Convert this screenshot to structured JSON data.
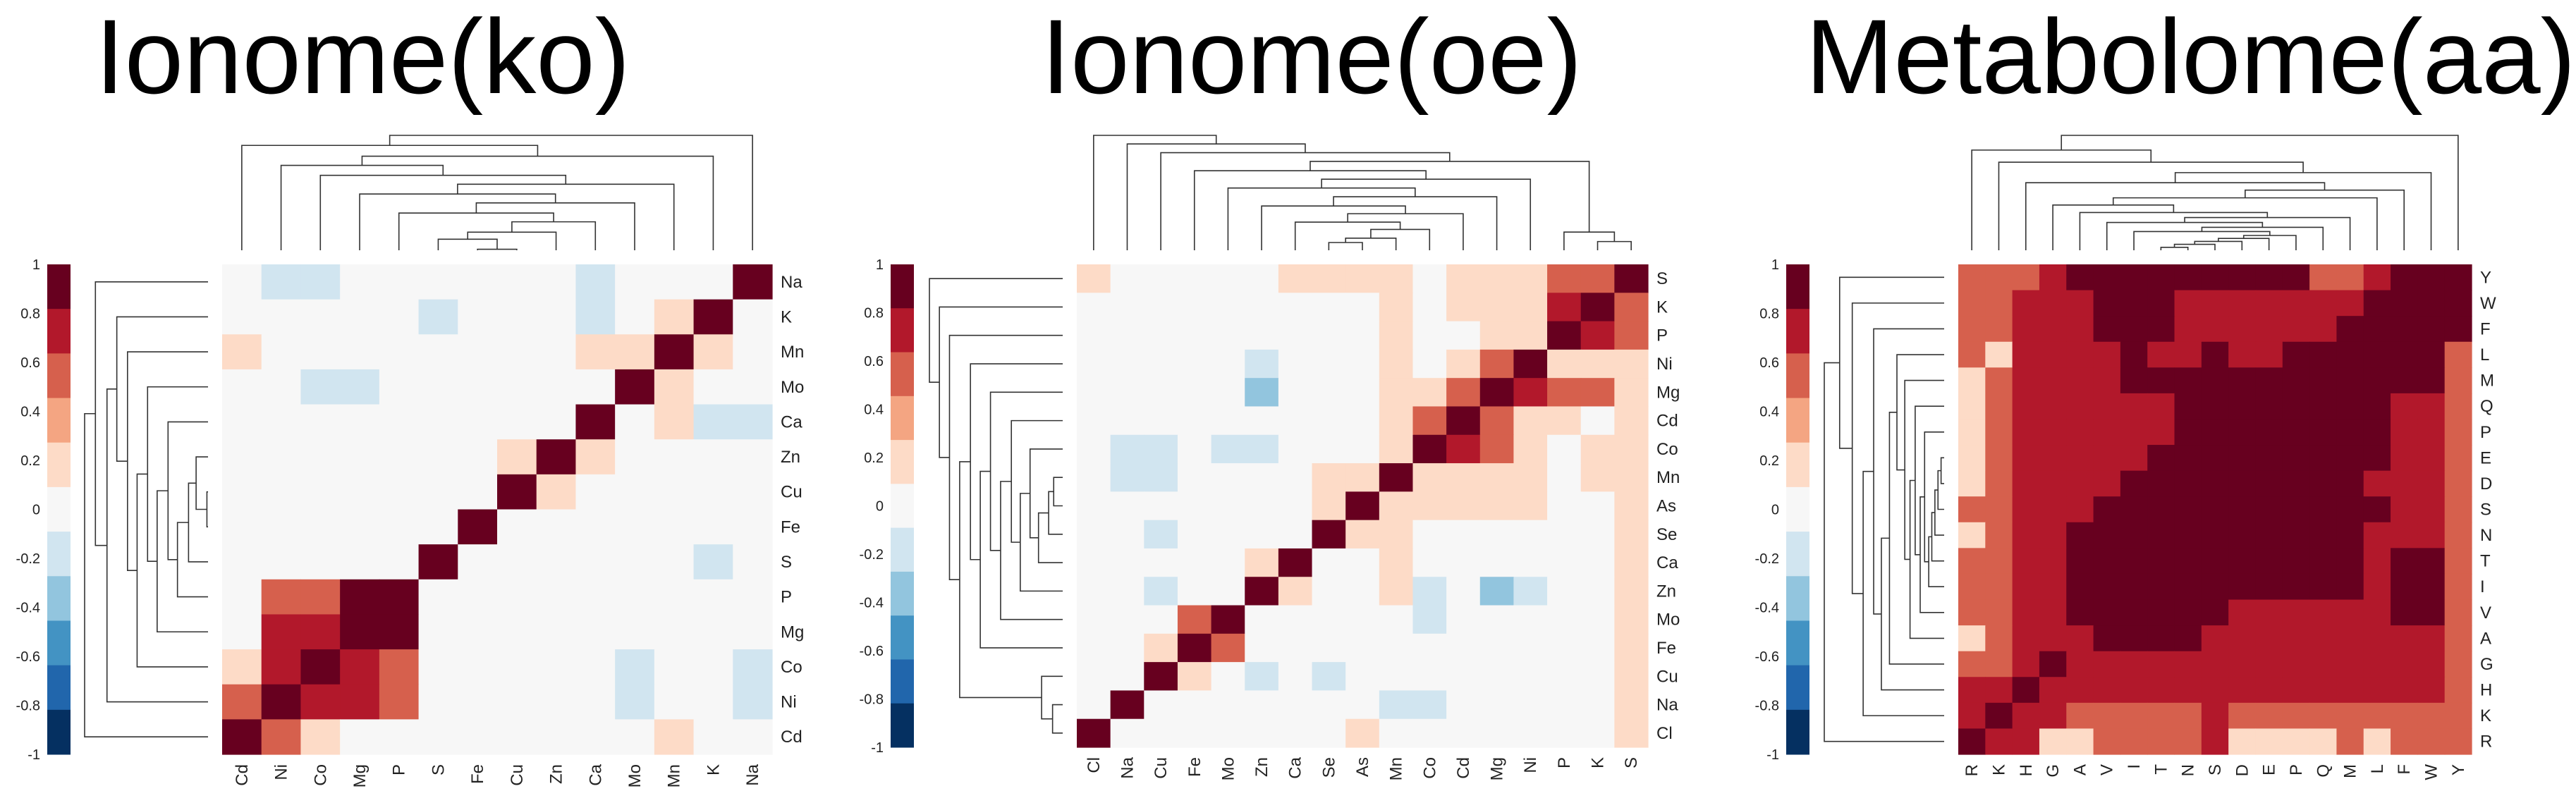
{
  "colorbar": {
    "ticks": [
      "1",
      "0.8",
      "0.6",
      "0.4",
      "0.2",
      "0",
      "-0.2",
      "-0.4",
      "-0.6",
      "-0.8",
      "-1"
    ],
    "colors": [
      "#67001f",
      "#b2182b",
      "#d6604d",
      "#f4a582",
      "#fddbc7",
      "#f7f7f7",
      "#d1e5f0",
      "#92c5de",
      "#4393c3",
      "#2166ac",
      "#053061"
    ]
  },
  "chart_data": [
    {
      "type": "heatmap",
      "title": "Ionome(ko)",
      "xlabel": "",
      "ylabel": "",
      "value_range": [
        -1,
        1
      ],
      "x_labels": [
        "Cd",
        "Ni",
        "Co",
        "Mg",
        "P",
        "S",
        "Fe",
        "Cu",
        "Zn",
        "Ca",
        "Mo",
        "Mn",
        "K",
        "Na"
      ],
      "y_labels": [
        "Na",
        "K",
        "Mn",
        "Mo",
        "Ca",
        "Zn",
        "Cu",
        "Fe",
        "S",
        "P",
        "Mg",
        "Co",
        "Ni",
        "Cd"
      ],
      "values": [
        [
          0,
          -0.1,
          -0.1,
          0,
          0,
          0,
          0,
          0,
          0,
          -0.1,
          0,
          0,
          0,
          1
        ],
        [
          0,
          0,
          0,
          0.1,
          0.1,
          -0.1,
          0,
          0,
          0,
          -0.1,
          0,
          0.3,
          1,
          0
        ],
        [
          0.3,
          0,
          0,
          0,
          0.1,
          0,
          0,
          0,
          0.1,
          0.3,
          0.3,
          1,
          0.3,
          0
        ],
        [
          0.1,
          0,
          -0.1,
          -0.1,
          0,
          0,
          0,
          0,
          0.1,
          0,
          1,
          0.3,
          0.1,
          0
        ],
        [
          0.1,
          0,
          0,
          0,
          0,
          0,
          0,
          0.1,
          0.1,
          1,
          0,
          0.3,
          -0.1,
          -0.1
        ],
        [
          0,
          0,
          0,
          0.1,
          0.1,
          0.1,
          0.1,
          0.3,
          1,
          0.3,
          0,
          0,
          0,
          0
        ],
        [
          0,
          0,
          0,
          0,
          0.1,
          0,
          0.1,
          1,
          0.3,
          0,
          0,
          0,
          0,
          0
        ],
        [
          0,
          0.1,
          0,
          0,
          0,
          0.1,
          1,
          0.1,
          0.1,
          0.1,
          0.1,
          0.1,
          0,
          0
        ],
        [
          0,
          0.1,
          0.1,
          0.1,
          0.1,
          1,
          0.1,
          0,
          0.1,
          0.1,
          0.1,
          0.1,
          -0.1,
          0
        ],
        [
          0.1,
          0.6,
          0.6,
          1,
          1,
          0.1,
          0,
          0.1,
          0.1,
          0.1,
          0,
          0.1,
          0,
          0
        ],
        [
          0.1,
          0.8,
          0.8,
          1,
          1,
          0.1,
          0,
          0,
          0.1,
          0,
          0,
          0.1,
          0.1,
          0
        ],
        [
          0.3,
          0.8,
          1,
          0.8,
          0.6,
          0.1,
          0,
          0,
          0.1,
          0,
          -0.1,
          0.1,
          0,
          -0.1
        ],
        [
          0.6,
          1,
          0.8,
          0.8,
          0.6,
          0.1,
          0.1,
          0,
          0.1,
          0,
          -0.1,
          0,
          0,
          -0.1
        ],
        [
          1,
          0.6,
          0.3,
          0.1,
          0.1,
          0,
          0,
          0,
          0,
          0.1,
          0.1,
          0.3,
          0,
          0
        ]
      ]
    },
    {
      "type": "heatmap",
      "title": "Ionome(oe)",
      "xlabel": "",
      "ylabel": "",
      "value_range": [
        -1,
        1
      ],
      "x_labels": [
        "Cl",
        "Na",
        "Cu",
        "Fe",
        "Mo",
        "Zn",
        "Ca",
        "Se",
        "As",
        "Mn",
        "Co",
        "Cd",
        "Mg",
        "Ni",
        "P",
        "K",
        "S"
      ],
      "y_labels": [
        "S",
        "K",
        "P",
        "Ni",
        "Mg",
        "Cd",
        "Co",
        "Mn",
        "As",
        "Se",
        "Ca",
        "Zn",
        "Mo",
        "Fe",
        "Cu",
        "Na",
        "Cl"
      ],
      "values": [
        [
          0.3,
          0.1,
          0.1,
          0.1,
          0,
          0.1,
          0.3,
          0.3,
          0.3,
          0.3,
          0.1,
          0.3,
          0.3,
          0.3,
          0.6,
          0.6,
          1
        ],
        [
          0.1,
          0.1,
          0,
          0.1,
          0,
          0.1,
          0.1,
          0.1,
          0.1,
          0.3,
          0.1,
          0.3,
          0.3,
          0.3,
          0.8,
          1,
          0.6
        ],
        [
          0.1,
          0.1,
          0.1,
          0.1,
          0,
          0.1,
          0.1,
          0.1,
          0.1,
          0.3,
          0.1,
          0.1,
          0.3,
          0.3,
          1,
          0.8,
          0.6
        ],
        [
          0.1,
          0.1,
          0.1,
          0.1,
          0,
          -0.1,
          0.1,
          0.1,
          0.1,
          0.3,
          0.1,
          0.3,
          0.6,
          1,
          0.3,
          0.3,
          0.3
        ],
        [
          0.1,
          0.1,
          0,
          0,
          0,
          -0.4,
          0.1,
          0.1,
          0.1,
          0.3,
          0.3,
          0.6,
          1,
          0.8,
          0.6,
          0.6,
          0.3
        ],
        [
          0.1,
          0.1,
          0.1,
          0.1,
          0,
          0.1,
          0.1,
          0.1,
          0.1,
          0.3,
          0.6,
          1,
          0.6,
          0.3,
          0.3,
          0.1,
          0.3
        ],
        [
          0,
          -0.1,
          -0.1,
          0,
          -0.1,
          -0.1,
          0.1,
          0.1,
          0.1,
          0.3,
          1,
          0.8,
          0.6,
          0.3,
          0.1,
          0.3,
          0.3
        ],
        [
          0,
          -0.1,
          -0.1,
          0,
          0,
          0.1,
          0.1,
          0.3,
          0.3,
          1,
          0.3,
          0.3,
          0.3,
          0.3,
          0.1,
          0.3,
          0.3
        ],
        [
          0,
          0,
          0.1,
          0.1,
          0,
          0.1,
          0.1,
          0.3,
          1,
          0.3,
          0.3,
          0.3,
          0.3,
          0.3,
          0.1,
          0.1,
          0.3
        ],
        [
          0,
          0.1,
          -0.1,
          0,
          0,
          0.1,
          0.1,
          1,
          0.3,
          0.3,
          0.1,
          0.1,
          0.1,
          0.1,
          0.1,
          0.1,
          0.3
        ],
        [
          0.1,
          0.1,
          0,
          0.1,
          0.1,
          0.3,
          1,
          0.1,
          0.1,
          0.3,
          0.1,
          0.1,
          0.1,
          0.1,
          0.1,
          0.1,
          0.3
        ],
        [
          0,
          0.1,
          -0.1,
          0.1,
          0.1,
          1,
          0.3,
          0.1,
          0.1,
          0.3,
          -0.1,
          0,
          -0.4,
          -0.1,
          0.1,
          0,
          0.3
        ],
        [
          0.1,
          0.1,
          0.1,
          0.6,
          1,
          0.1,
          0.1,
          0.1,
          0,
          0.1,
          -0.1,
          0.1,
          0.1,
          0.1,
          0,
          0.1,
          0.3
        ],
        [
          0.1,
          0.1,
          0.3,
          1,
          0.6,
          0.1,
          0.1,
          0,
          0.1,
          0.1,
          0.1,
          0.1,
          0.1,
          0.1,
          0.1,
          0.1,
          0.3
        ],
        [
          0.1,
          0.1,
          1,
          0.3,
          0.1,
          -0.1,
          0.1,
          -0.1,
          0.1,
          0,
          0.1,
          0.1,
          0.1,
          0.1,
          0.1,
          0,
          0.3
        ],
        [
          0.1,
          1,
          0.1,
          0.1,
          0.1,
          0,
          0.1,
          0,
          0.1,
          -0.1,
          -0.1,
          0.1,
          0,
          0,
          0.1,
          0.1,
          0.3
        ],
        [
          1,
          0.1,
          0.1,
          0.1,
          0,
          0.1,
          0.1,
          0,
          0.3,
          0.1,
          0,
          0.1,
          0.1,
          0.1,
          0.1,
          0.1,
          0.3
        ]
      ]
    },
    {
      "type": "heatmap",
      "title": "Metabolome(aa)",
      "xlabel": "",
      "ylabel": "",
      "value_range": [
        -1,
        1
      ],
      "x_labels": [
        "R",
        "K",
        "H",
        "G",
        "A",
        "V",
        "I",
        "T",
        "N",
        "S",
        "D",
        "E",
        "P",
        "Q",
        "M",
        "L",
        "F",
        "W",
        "Y"
      ],
      "y_labels": [
        "Y",
        "W",
        "F",
        "L",
        "M",
        "Q",
        "P",
        "E",
        "D",
        "S",
        "N",
        "T",
        "I",
        "V",
        "A",
        "G",
        "H",
        "K",
        "R"
      ],
      "values": [
        [
          0.6,
          0.6,
          0.6,
          0.8,
          1,
          1,
          1,
          1,
          1,
          1,
          1,
          1,
          1,
          0.6,
          0.6,
          0.8,
          1,
          1,
          1
        ],
        [
          0.6,
          0.6,
          0.8,
          0.8,
          0.8,
          1,
          1,
          1,
          0.8,
          0.8,
          0.8,
          0.8,
          0.8,
          0.8,
          0.8,
          1,
          1,
          1,
          1
        ],
        [
          0.6,
          0.6,
          0.8,
          0.8,
          0.8,
          1,
          1,
          1,
          0.8,
          0.8,
          0.8,
          0.8,
          0.8,
          0.8,
          1,
          1,
          1,
          1,
          1
        ],
        [
          0.6,
          0.3,
          0.8,
          0.8,
          0.8,
          0.8,
          1,
          0.8,
          0.8,
          1,
          0.8,
          0.8,
          1,
          1,
          1,
          1,
          1,
          1,
          0.6
        ],
        [
          0.3,
          0.6,
          0.8,
          0.8,
          0.8,
          0.8,
          1,
          1,
          1,
          1,
          1,
          1,
          1,
          1,
          1,
          1,
          1,
          1,
          0.6
        ],
        [
          0.3,
          0.6,
          0.8,
          0.8,
          0.8,
          0.8,
          0.8,
          0.8,
          1,
          1,
          1,
          1,
          1,
          1,
          1,
          1,
          0.8,
          0.8,
          0.6
        ],
        [
          0.3,
          0.6,
          0.8,
          0.8,
          0.8,
          0.8,
          0.8,
          0.8,
          1,
          1,
          1,
          1,
          1,
          1,
          1,
          1,
          0.8,
          0.8,
          0.6
        ],
        [
          0.3,
          0.6,
          0.8,
          0.8,
          0.8,
          0.8,
          0.8,
          1,
          1,
          1,
          1,
          1,
          1,
          1,
          1,
          1,
          0.8,
          0.8,
          0.6
        ],
        [
          0.3,
          0.6,
          0.8,
          0.8,
          0.8,
          0.8,
          1,
          1,
          1,
          1,
          1,
          1,
          1,
          1,
          1,
          0.8,
          0.8,
          0.8,
          0.6
        ],
        [
          0.6,
          0.6,
          0.8,
          0.8,
          0.8,
          1,
          1,
          1,
          1,
          1,
          1,
          1,
          1,
          1,
          1,
          1,
          0.8,
          0.8,
          0.6
        ],
        [
          0.3,
          0.6,
          0.8,
          0.8,
          1,
          1,
          1,
          1,
          1,
          1,
          1,
          1,
          1,
          1,
          1,
          0.8,
          0.8,
          0.8,
          0.6
        ],
        [
          0.6,
          0.6,
          0.8,
          0.8,
          1,
          1,
          1,
          1,
          1,
          1,
          1,
          1,
          1,
          1,
          1,
          0.8,
          1,
          1,
          0.6
        ],
        [
          0.6,
          0.6,
          0.8,
          0.8,
          1,
          1,
          1,
          1,
          1,
          1,
          1,
          1,
          1,
          1,
          1,
          0.8,
          1,
          1,
          0.6
        ],
        [
          0.6,
          0.6,
          0.8,
          0.8,
          1,
          1,
          1,
          1,
          1,
          1,
          0.8,
          0.8,
          0.8,
          0.8,
          0.8,
          0.8,
          1,
          1,
          0.6
        ],
        [
          0.3,
          0.6,
          0.8,
          0.8,
          0.8,
          1,
          1,
          1,
          1,
          0.8,
          0.8,
          0.8,
          0.8,
          0.8,
          0.8,
          0.8,
          0.8,
          0.8,
          0.6
        ],
        [
          0.6,
          0.6,
          0.8,
          1,
          0.8,
          0.8,
          0.8,
          0.8,
          0.8,
          0.8,
          0.8,
          0.8,
          0.8,
          0.8,
          0.8,
          0.8,
          0.8,
          0.8,
          0.6
        ],
        [
          0.8,
          0.8,
          1,
          0.8,
          0.8,
          0.8,
          0.8,
          0.8,
          0.8,
          0.8,
          0.8,
          0.8,
          0.8,
          0.8,
          0.8,
          0.8,
          0.8,
          0.8,
          0.6
        ],
        [
          0.8,
          1,
          0.8,
          0.8,
          0.6,
          0.6,
          0.6,
          0.6,
          0.6,
          0.8,
          0.6,
          0.6,
          0.6,
          0.6,
          0.6,
          0.6,
          0.6,
          0.6,
          0.6
        ],
        [
          1,
          0.8,
          0.8,
          0.3,
          0.3,
          0.6,
          0.6,
          0.6,
          0.6,
          0.8,
          0.3,
          0.3,
          0.3,
          0.3,
          0.6,
          0.3,
          0.6,
          0.6,
          0.6
        ]
      ]
    }
  ]
}
